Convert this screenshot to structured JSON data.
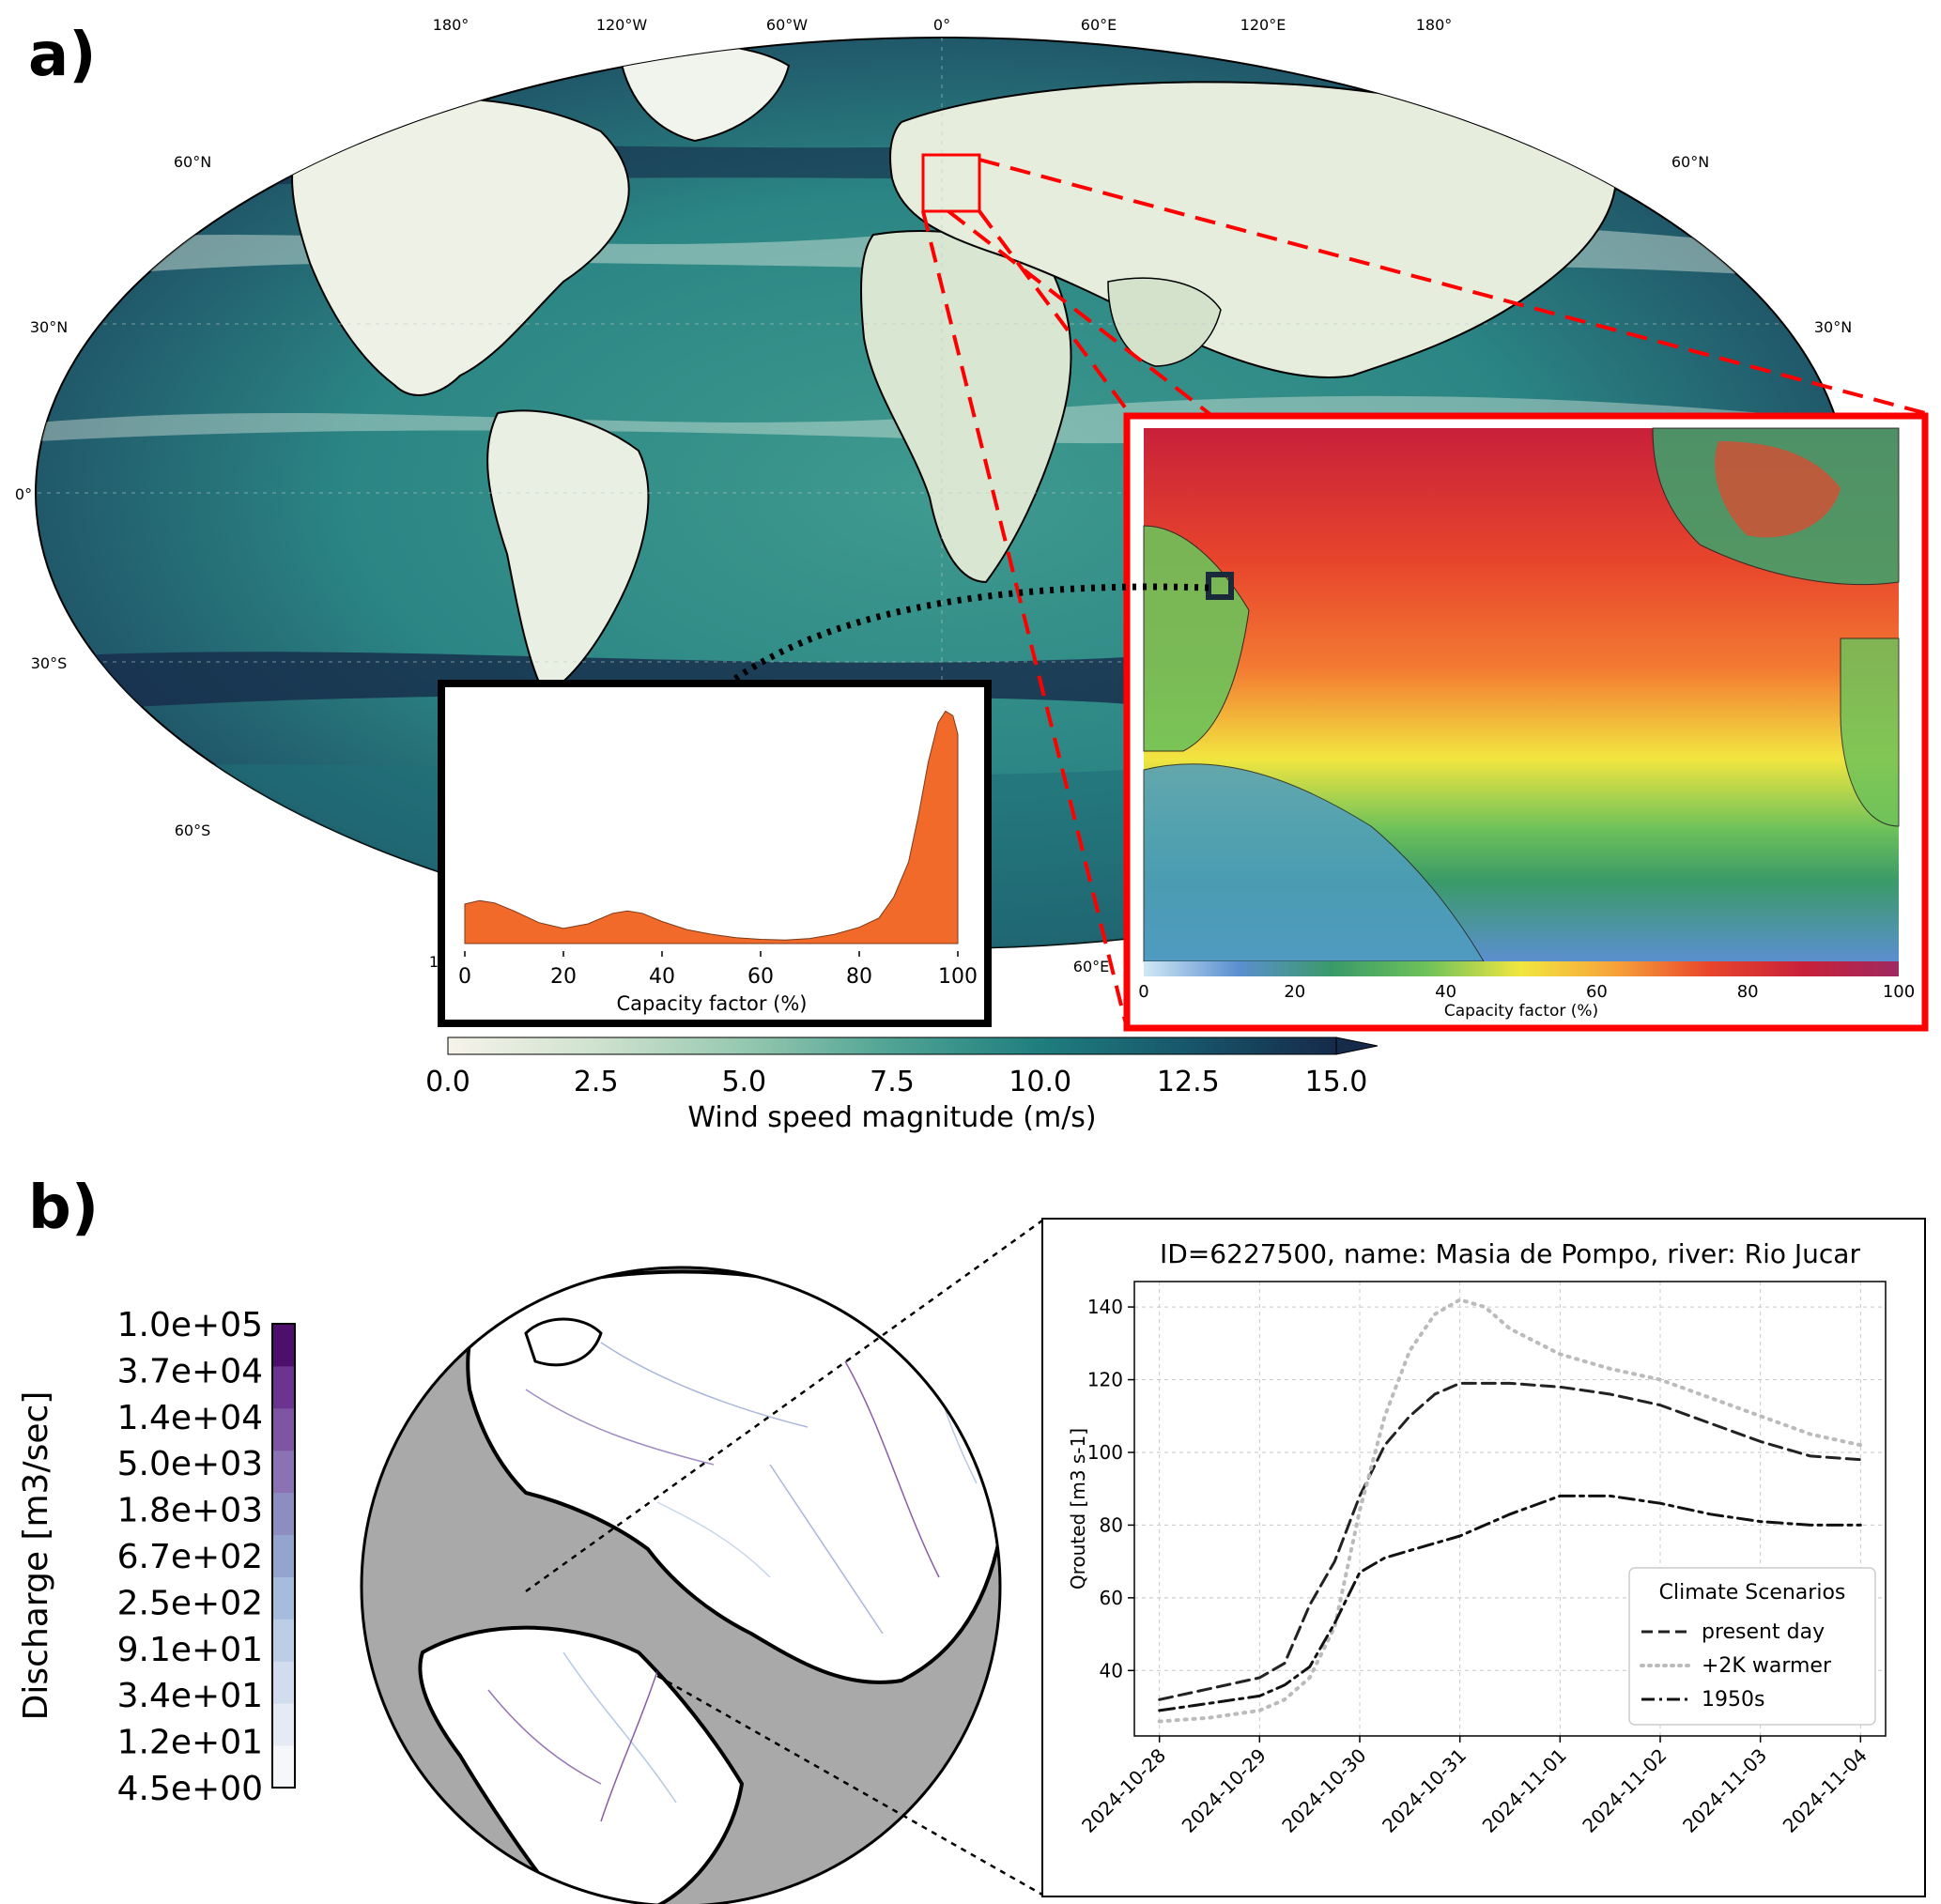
{
  "panel_a": {
    "label": "a)",
    "map": {
      "lon_labels": [
        "180°",
        "120°W",
        "60°W",
        "0°",
        "60°E",
        "120°E",
        "180°"
      ],
      "lat_labels_left": [
        "60°N",
        "30°N",
        "0°",
        "30°S",
        "60°S"
      ],
      "lat_labels_right": [
        "60°N",
        "30°N"
      ],
      "bottom_lon_partial": [
        "1",
        "60°E"
      ]
    },
    "colorbar": {
      "label": "Wind speed magnitude (m/s)",
      "ticks": [
        "0.0",
        "2.5",
        "5.0",
        "7.5",
        "10.0",
        "12.5",
        "15.0"
      ],
      "colors": [
        "#f6f3ea",
        "#cfe2cf",
        "#96c8b0",
        "#4fa394",
        "#1f7e7e",
        "#17566b",
        "#162a4a"
      ]
    },
    "inset_map": {
      "colorbar_label": "Capacity factor (%)",
      "colorbar_ticks": [
        "0",
        "20",
        "40",
        "60",
        "80",
        "100"
      ],
      "colors": [
        "#cfe8f6",
        "#5b8fd0",
        "#3a9a68",
        "#6ec25a",
        "#f2e640",
        "#f6a23a",
        "#e8452c",
        "#c8203a",
        "#9e2a60"
      ],
      "border_color": "#ff0000"
    }
  },
  "panel_b": {
    "label": "b)",
    "colorbar": {
      "label": "Discharge [m3/sec]",
      "ticks": [
        "1.0e+05",
        "3.7e+04",
        "1.4e+04",
        "5.0e+03",
        "1.8e+03",
        "6.7e+02",
        "2.5e+02",
        "9.1e+01",
        "3.4e+01",
        "1.2e+01",
        "4.5e+00"
      ],
      "colors": [
        "#f6f7fb",
        "#e6eaf4",
        "#d2dcef",
        "#bccde6",
        "#a5bcdd",
        "#93a4cf",
        "#8e8dc2",
        "#8a72b4",
        "#7d55a3",
        "#6b3491",
        "#4e0f6c"
      ]
    }
  },
  "chart_data": [
    {
      "type": "area",
      "xlabel": "Capacity factor (%)",
      "xlim": [
        0,
        100
      ],
      "xticks": [
        0,
        20,
        40,
        60,
        80,
        100
      ],
      "color": "#f26a2a",
      "x": [
        0,
        3,
        6,
        10,
        15,
        20,
        25,
        30,
        33,
        36,
        40,
        45,
        50,
        55,
        60,
        65,
        70,
        75,
        80,
        84,
        87,
        90,
        92,
        94,
        96,
        97.5,
        99,
        100
      ],
      "values": [
        0.17,
        0.185,
        0.175,
        0.14,
        0.09,
        0.065,
        0.085,
        0.13,
        0.14,
        0.13,
        0.095,
        0.06,
        0.04,
        0.025,
        0.018,
        0.015,
        0.022,
        0.04,
        0.07,
        0.11,
        0.2,
        0.35,
        0.55,
        0.78,
        0.95,
        1.0,
        0.98,
        0.9
      ],
      "ylim": [
        0,
        1.05
      ]
    },
    {
      "type": "line",
      "title": "ID=6227500, name: Masia de Pompo, river: Rio Jucar",
      "xlabel": "",
      "ylabel": "Qrouted [m3 s-1]",
      "x_ticks": [
        "2024-10-28",
        "2024-10-29",
        "2024-10-30",
        "2024-10-31",
        "2024-11-01",
        "2024-11-02",
        "2024-11-03",
        "2024-11-04"
      ],
      "xlim": [
        "2024-10-27T18:00",
        "2024-11-04T06:00"
      ],
      "ylim": [
        22,
        147
      ],
      "yticks": [
        40,
        60,
        80,
        100,
        120,
        140
      ],
      "grid": true,
      "legend": {
        "title": "Climate Scenarios",
        "position": "lower-right"
      },
      "series": [
        {
          "name": "present day",
          "style": "dashed",
          "color": "#222222",
          "x": [
            "2024-10-28T00:00",
            "2024-10-28T12:00",
            "2024-10-29T00:00",
            "2024-10-29T06:00",
            "2024-10-29T12:00",
            "2024-10-29T18:00",
            "2024-10-30T00:00",
            "2024-10-30T06:00",
            "2024-10-30T12:00",
            "2024-10-30T18:00",
            "2024-10-31T00:00",
            "2024-10-31T12:00",
            "2024-11-01T00:00",
            "2024-11-01T12:00",
            "2024-11-02T00:00",
            "2024-11-02T12:00",
            "2024-11-03T00:00",
            "2024-11-03T12:00",
            "2024-11-04T00:00"
          ],
          "values": [
            32,
            35,
            38,
            42,
            58,
            70,
            88,
            102,
            110,
            116,
            119,
            119,
            118,
            116,
            113,
            108,
            103,
            99,
            98
          ]
        },
        {
          "name": "+2K warmer",
          "style": "dotted",
          "color": "#bbbbbb",
          "x": [
            "2024-10-28T00:00",
            "2024-10-28T12:00",
            "2024-10-29T00:00",
            "2024-10-29T06:00",
            "2024-10-29T12:00",
            "2024-10-29T18:00",
            "2024-10-30T00:00",
            "2024-10-30T06:00",
            "2024-10-30T12:00",
            "2024-10-30T18:00",
            "2024-10-31T00:00",
            "2024-10-31T06:00",
            "2024-10-31T12:00",
            "2024-11-01T00:00",
            "2024-11-01T12:00",
            "2024-11-02T00:00",
            "2024-11-02T12:00",
            "2024-11-03T00:00",
            "2024-11-03T12:00",
            "2024-11-04T00:00"
          ],
          "values": [
            26,
            27,
            29,
            32,
            38,
            52,
            84,
            110,
            128,
            138,
            142,
            140,
            134,
            127,
            123,
            120,
            115,
            110,
            105,
            102
          ]
        },
        {
          "name": "1950s",
          "style": "dashdot",
          "color": "#111111",
          "x": [
            "2024-10-28T00:00",
            "2024-10-28T12:00",
            "2024-10-29T00:00",
            "2024-10-29T06:00",
            "2024-10-29T12:00",
            "2024-10-29T18:00",
            "2024-10-30T00:00",
            "2024-10-30T06:00",
            "2024-10-30T12:00",
            "2024-10-31T00:00",
            "2024-10-31T12:00",
            "2024-11-01T00:00",
            "2024-11-01T12:00",
            "2024-11-02T00:00",
            "2024-11-02T12:00",
            "2024-11-03T00:00",
            "2024-11-03T12:00",
            "2024-11-04T00:00"
          ],
          "values": [
            29,
            31,
            33,
            36,
            41,
            53,
            67,
            71,
            73,
            77,
            83,
            88,
            88,
            86,
            83,
            81,
            80,
            80
          ]
        }
      ]
    }
  ]
}
